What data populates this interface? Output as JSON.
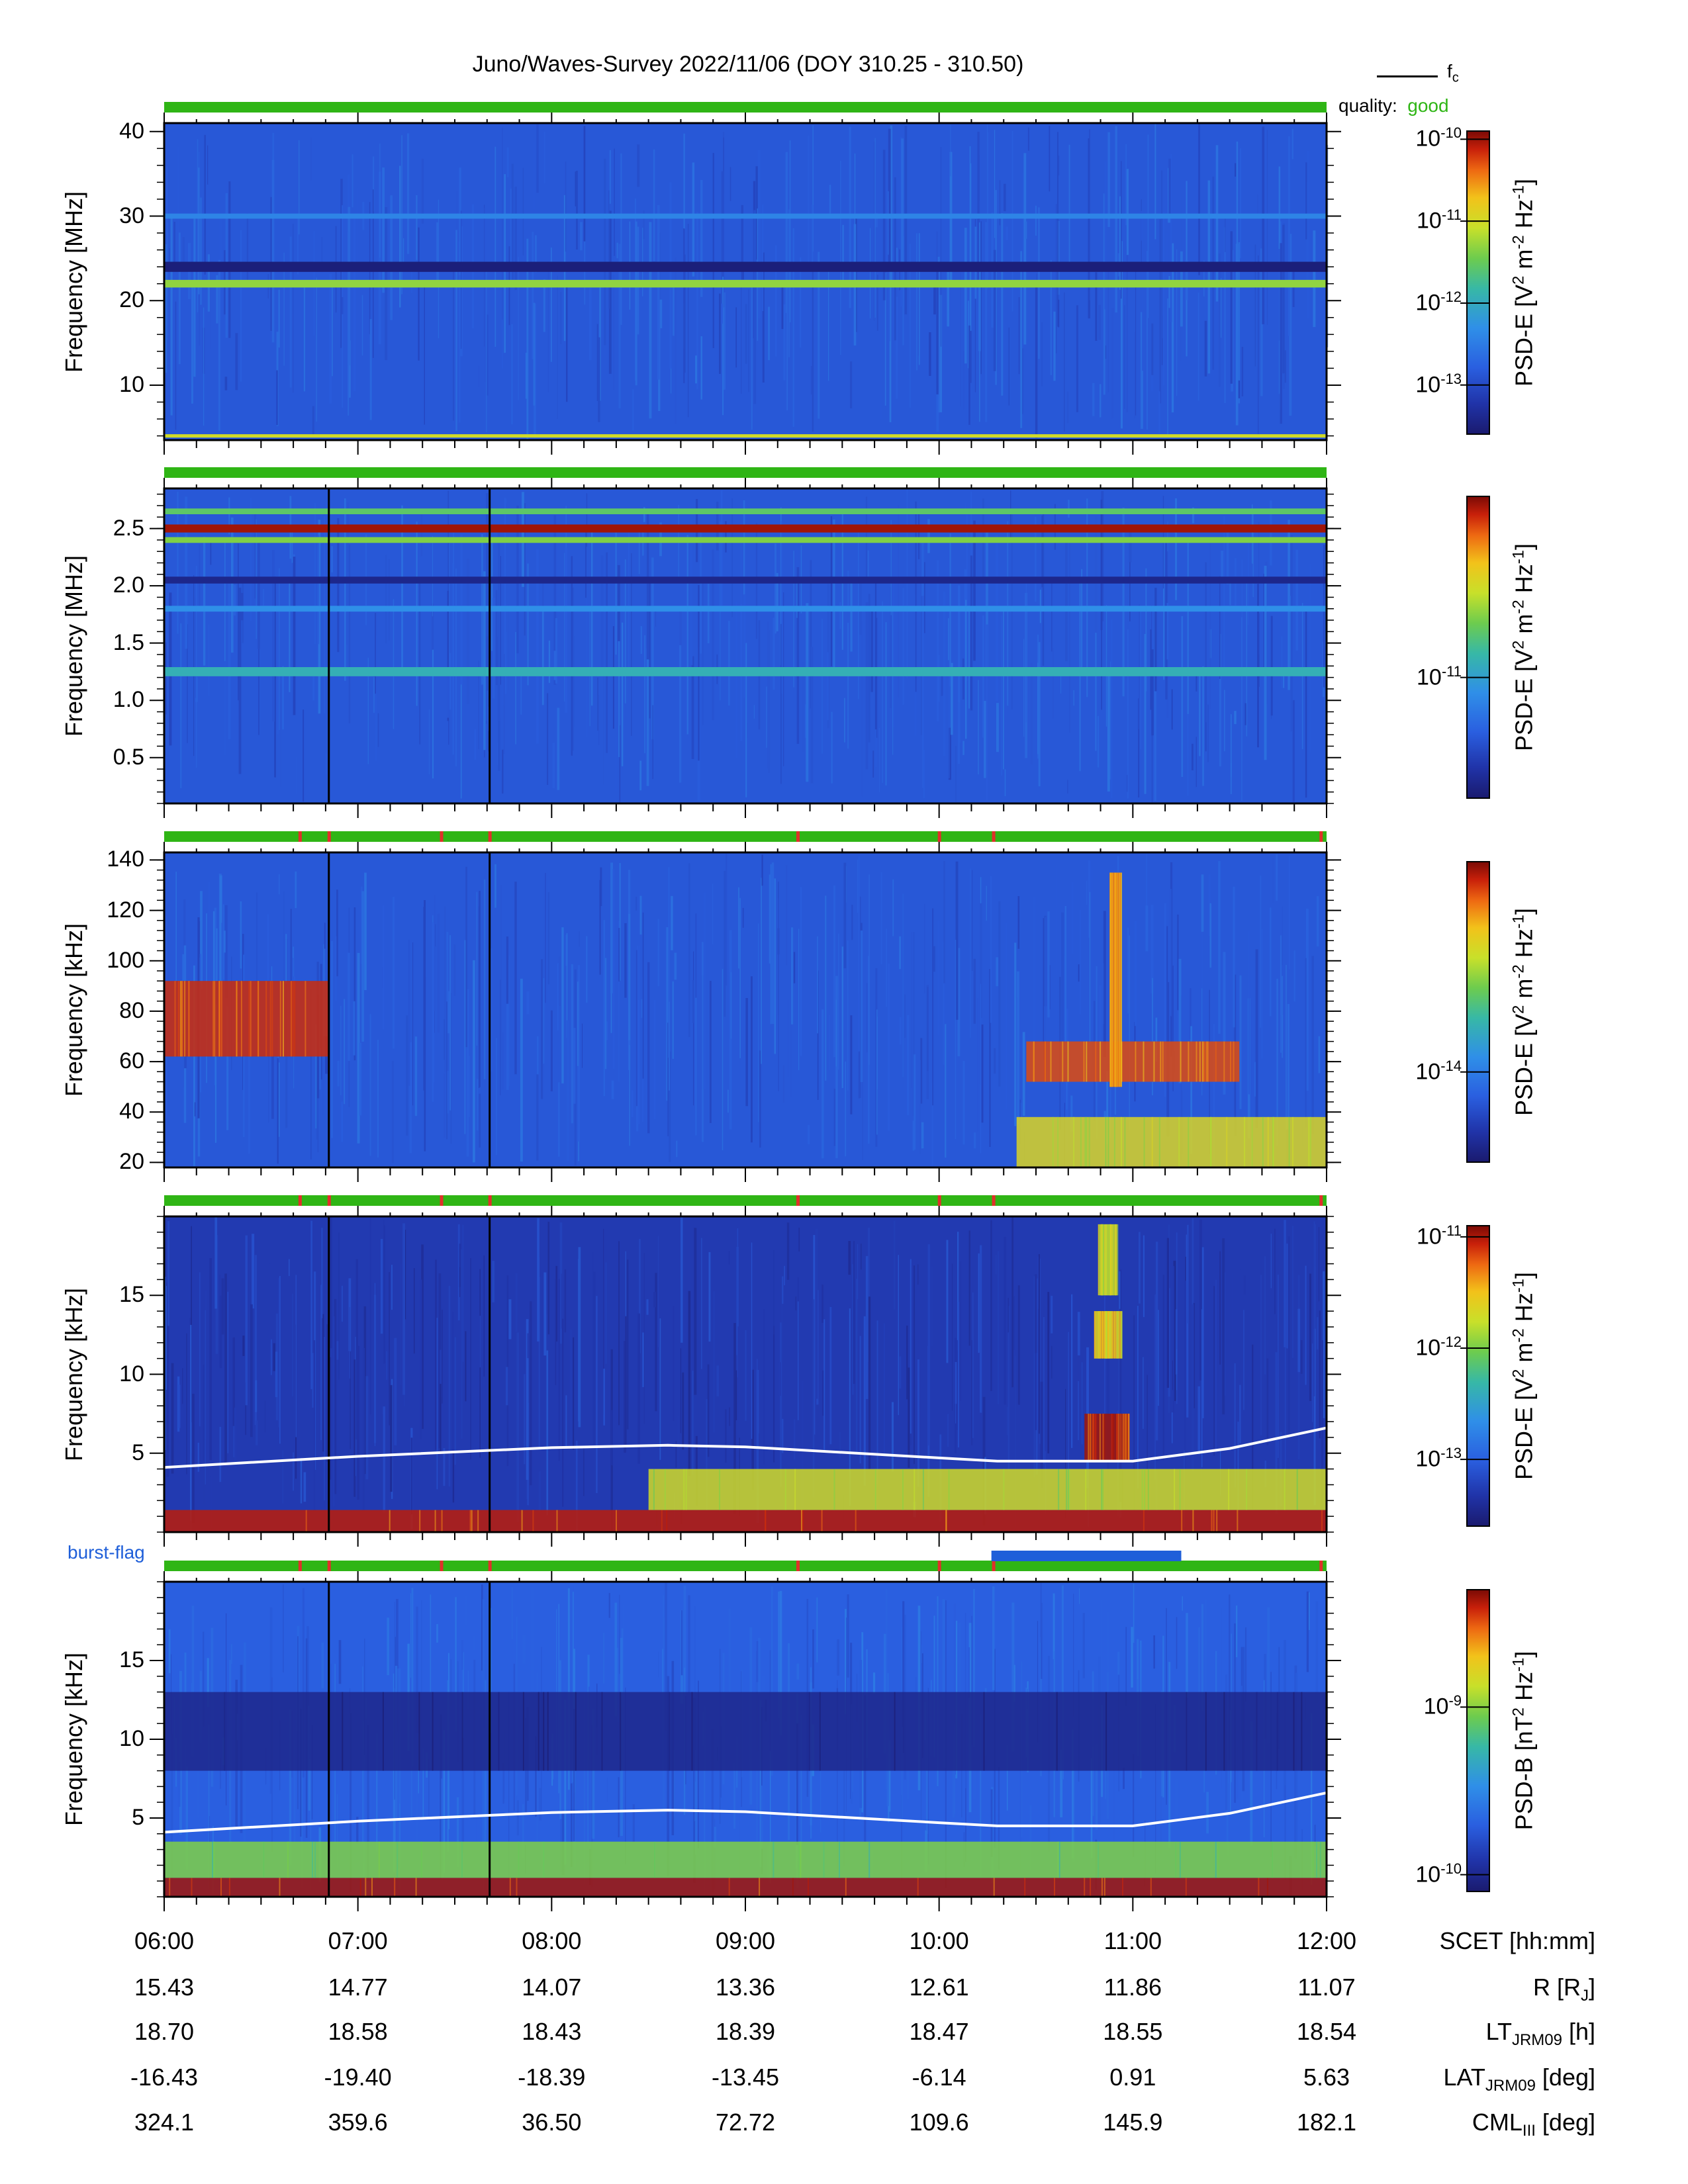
{
  "title": "Juno/Waves-Survey  2022/11/06 (DOY 310.25 - 310.50)",
  "legend": {
    "line_label": "f",
    "line_sub": "c",
    "quality_prefix": "quality:",
    "quality_value": "good"
  },
  "burst_flag_label": "burst-flag",
  "colors": {
    "quality_good": "#2fb515",
    "quality_gap": "#e0302a",
    "burst": "#1f5fd9",
    "fc_line": "#ffffff"
  },
  "x_axis": {
    "ticks": [
      "06:00",
      "07:00",
      "08:00",
      "09:00",
      "10:00",
      "11:00",
      "12:00"
    ],
    "range_hours": [
      6,
      12
    ]
  },
  "ephemeris": [
    {
      "label": "SCET [hh:mm]",
      "label_main": "SCET [hh:mm]",
      "label_sub": "",
      "label_tail": "",
      "values": [
        "06:00",
        "07:00",
        "08:00",
        "09:00",
        "10:00",
        "11:00",
        "12:00"
      ]
    },
    {
      "label": "R [RJ]",
      "label_main": "R [R",
      "label_sub": "J",
      "label_tail": "]",
      "values": [
        "15.43",
        "14.77",
        "14.07",
        "13.36",
        "12.61",
        "11.86",
        "11.07"
      ]
    },
    {
      "label": "LTJRM09 [h]",
      "label_main": "LT",
      "label_sub": "JRM09",
      "label_tail": " [h]",
      "values": [
        "18.70",
        "18.58",
        "18.43",
        "18.39",
        "18.47",
        "18.55",
        "18.54"
      ]
    },
    {
      "label": "LATJRM09 [deg]",
      "label_main": "LAT",
      "label_sub": "JRM09",
      "label_tail": " [deg]",
      "values": [
        "-16.43",
        "-19.40",
        "-18.39",
        "-13.45",
        "-6.14",
        "0.91",
        "5.63"
      ]
    },
    {
      "label": "CMLIII [deg]",
      "label_main": "CML",
      "label_sub": "III",
      "label_tail": " [deg]",
      "values": [
        "324.1",
        "359.6",
        "36.50",
        "72.72",
        "109.6",
        "145.9",
        "182.1"
      ]
    }
  ],
  "chart_data": [
    {
      "type": "heatmap",
      "ylabel": "Frequency [MHz]",
      "ylim": [
        3.5,
        41
      ],
      "yticks": [
        10,
        20,
        30,
        40
      ],
      "ytick_labels": [
        "10",
        "20",
        "30",
        "40"
      ],
      "colorbar_label": "PSD-E [V2 m-2 Hz-1]",
      "colorbar_kind": "E",
      "colorbar_log_range": [
        -13.6,
        -9.9
      ],
      "colorbar_ticks": [
        -13,
        -12,
        -11,
        -10
      ],
      "colorbar_tick_labels": [
        "10-13",
        "10-12",
        "10-11",
        "10-10"
      ],
      "quality_gaps_hours": [],
      "fc_line": false,
      "background_level": 0.2,
      "bands": [
        {
          "f": 22,
          "width": 0.9,
          "level": 0.62
        },
        {
          "f": 30,
          "width": 0.6,
          "level": 0.32
        },
        {
          "f": 24,
          "width": 1.2,
          "level": 0.02
        },
        {
          "f": 4,
          "width": 0.4,
          "level": 0.7
        }
      ]
    },
    {
      "type": "heatmap",
      "ylabel": "Frequency [MHz]",
      "ylim": [
        0.1,
        2.85
      ],
      "yticks": [
        0.5,
        1.0,
        1.5,
        2.0,
        2.5
      ],
      "ytick_labels": [
        "0.5",
        "1.0",
        "1.5",
        "2.0",
        "2.5"
      ],
      "colorbar_label": "PSD-E [V2 m-2 Hz-1]",
      "colorbar_kind": "E",
      "colorbar_log_range": [
        -11.4,
        -10.4
      ],
      "colorbar_ticks": [
        -11
      ],
      "colorbar_tick_labels": [
        "10-11"
      ],
      "quality_gaps_hours": [],
      "fc_line": false,
      "background_level": 0.2,
      "bands": [
        {
          "f": 2.5,
          "width": 0.07,
          "level": 0.97
        },
        {
          "f": 2.4,
          "width": 0.05,
          "level": 0.6
        },
        {
          "f": 2.65,
          "width": 0.05,
          "level": 0.55
        },
        {
          "f": 1.25,
          "width": 0.08,
          "level": 0.45
        },
        {
          "f": 1.8,
          "width": 0.05,
          "level": 0.35
        },
        {
          "f": 2.05,
          "width": 0.06,
          "level": 0.05
        }
      ]
    },
    {
      "type": "heatmap",
      "ylabel": "Frequency [kHz]",
      "ylim": [
        18,
        143
      ],
      "yticks": [
        20,
        40,
        60,
        80,
        100,
        120,
        140
      ],
      "ytick_labels": [
        "20",
        "40",
        "60",
        "80",
        "100",
        "120",
        "140"
      ],
      "colorbar_label": "PSD-E [V2 m-2 Hz-1]",
      "colorbar_kind": "E",
      "colorbar_log_range": [
        -14.3,
        -13.3
      ],
      "colorbar_ticks": [
        -14
      ],
      "colorbar_tick_labels": [
        "10-14"
      ],
      "quality_gaps_hours": [
        6.7,
        6.85,
        7.43,
        7.68,
        9.27,
        10.0,
        10.28,
        11.97
      ],
      "fc_line": false,
      "background_level": 0.2,
      "bands": [],
      "patches": [
        {
          "t0": 6.0,
          "t1": 6.85,
          "f0": 62,
          "f1": 92,
          "level": 0.93
        },
        {
          "t0": 10.45,
          "t1": 11.55,
          "f0": 52,
          "f1": 68,
          "level": 0.9
        },
        {
          "t0": 10.88,
          "t1": 10.94,
          "f0": 50,
          "f1": 135,
          "level": 0.9
        },
        {
          "t0": 10.4,
          "t1": 12.0,
          "f0": 18,
          "f1": 38,
          "level": 0.72
        }
      ]
    },
    {
      "type": "heatmap",
      "ylabel": "Frequency [kHz]",
      "ylim": [
        0,
        20
      ],
      "yticks": [
        5,
        10,
        15
      ],
      "ytick_labels": [
        "5",
        "10",
        "15"
      ],
      "colorbar_label": "PSD-E [V2 m-2 Hz-1]",
      "colorbar_kind": "E",
      "colorbar_log_range": [
        -13.6,
        -10.9
      ],
      "colorbar_ticks": [
        -13,
        -12,
        -11
      ],
      "colorbar_tick_labels": [
        "10-13",
        "10-12",
        "10-11"
      ],
      "quality_gaps_hours": [
        6.7,
        6.85,
        7.43,
        7.68,
        9.27,
        10.0,
        10.28,
        11.97
      ],
      "fc_line": true,
      "fc_khz": [
        {
          "t": 6.0,
          "f": 4.1
        },
        {
          "t": 7.0,
          "f": 4.8
        },
        {
          "t": 8.0,
          "f": 5.35
        },
        {
          "t": 8.6,
          "f": 5.5
        },
        {
          "t": 9.0,
          "f": 5.4
        },
        {
          "t": 10.0,
          "f": 4.7
        },
        {
          "t": 10.3,
          "f": 4.5
        },
        {
          "t": 11.0,
          "f": 4.5
        },
        {
          "t": 11.5,
          "f": 5.3
        },
        {
          "t": 12.0,
          "f": 6.6
        }
      ],
      "background_level": 0.12,
      "bands": [],
      "patches": [
        {
          "t0": 6.0,
          "t1": 12.0,
          "f0": 0,
          "f1": 1.4,
          "level": 0.95
        },
        {
          "t0": 8.5,
          "t1": 12.0,
          "f0": 1.4,
          "f1": 4.0,
          "level": 0.7
        },
        {
          "t0": 10.75,
          "t1": 10.98,
          "f0": 4.5,
          "f1": 7.5,
          "level": 0.97
        },
        {
          "t0": 10.8,
          "t1": 10.94,
          "f0": 11,
          "f1": 14,
          "level": 0.8
        },
        {
          "t0": 10.82,
          "t1": 10.92,
          "f0": 15,
          "f1": 19.5,
          "level": 0.75
        }
      ]
    },
    {
      "type": "heatmap",
      "ylabel": "Frequency [kHz]",
      "ylim": [
        0,
        20
      ],
      "yticks": [
        5,
        10,
        15
      ],
      "ytick_labels": [
        "5",
        "10",
        "15"
      ],
      "colorbar_label": "PSD-B [nT2 Hz-1]",
      "colorbar_kind": "B",
      "colorbar_log_range": [
        -10.1,
        -8.3
      ],
      "colorbar_ticks": [
        -10,
        -9
      ],
      "colorbar_tick_labels": [
        "10-10",
        "10-9"
      ],
      "quality_gaps_hours": [
        6.7,
        6.85,
        7.43,
        7.68,
        9.27,
        10.0,
        10.28,
        11.97
      ],
      "fc_line": true,
      "fc_khz": [
        {
          "t": 6.0,
          "f": 4.1
        },
        {
          "t": 7.0,
          "f": 4.8
        },
        {
          "t": 8.0,
          "f": 5.35
        },
        {
          "t": 8.6,
          "f": 5.5
        },
        {
          "t": 9.0,
          "f": 5.4
        },
        {
          "t": 10.0,
          "f": 4.7
        },
        {
          "t": 10.3,
          "f": 4.5
        },
        {
          "t": 11.0,
          "f": 4.5
        },
        {
          "t": 11.5,
          "f": 5.3
        },
        {
          "t": 12.0,
          "f": 6.6
        }
      ],
      "background_level": 0.22,
      "bands": [],
      "patches": [
        {
          "t0": 6.0,
          "t1": 12.0,
          "f0": 0,
          "f1": 1.2,
          "level": 0.97
        },
        {
          "t0": 6.0,
          "t1": 12.0,
          "f0": 1.2,
          "f1": 3.5,
          "level": 0.6
        },
        {
          "t0": 6.0,
          "t1": 12.0,
          "f0": 8,
          "f1": 13,
          "level": 0.05
        }
      ]
    }
  ],
  "burst_intervals_hours": [
    [
      10.27,
      11.25
    ]
  ],
  "vertical_gaps_hours": [
    6.85,
    7.68
  ]
}
